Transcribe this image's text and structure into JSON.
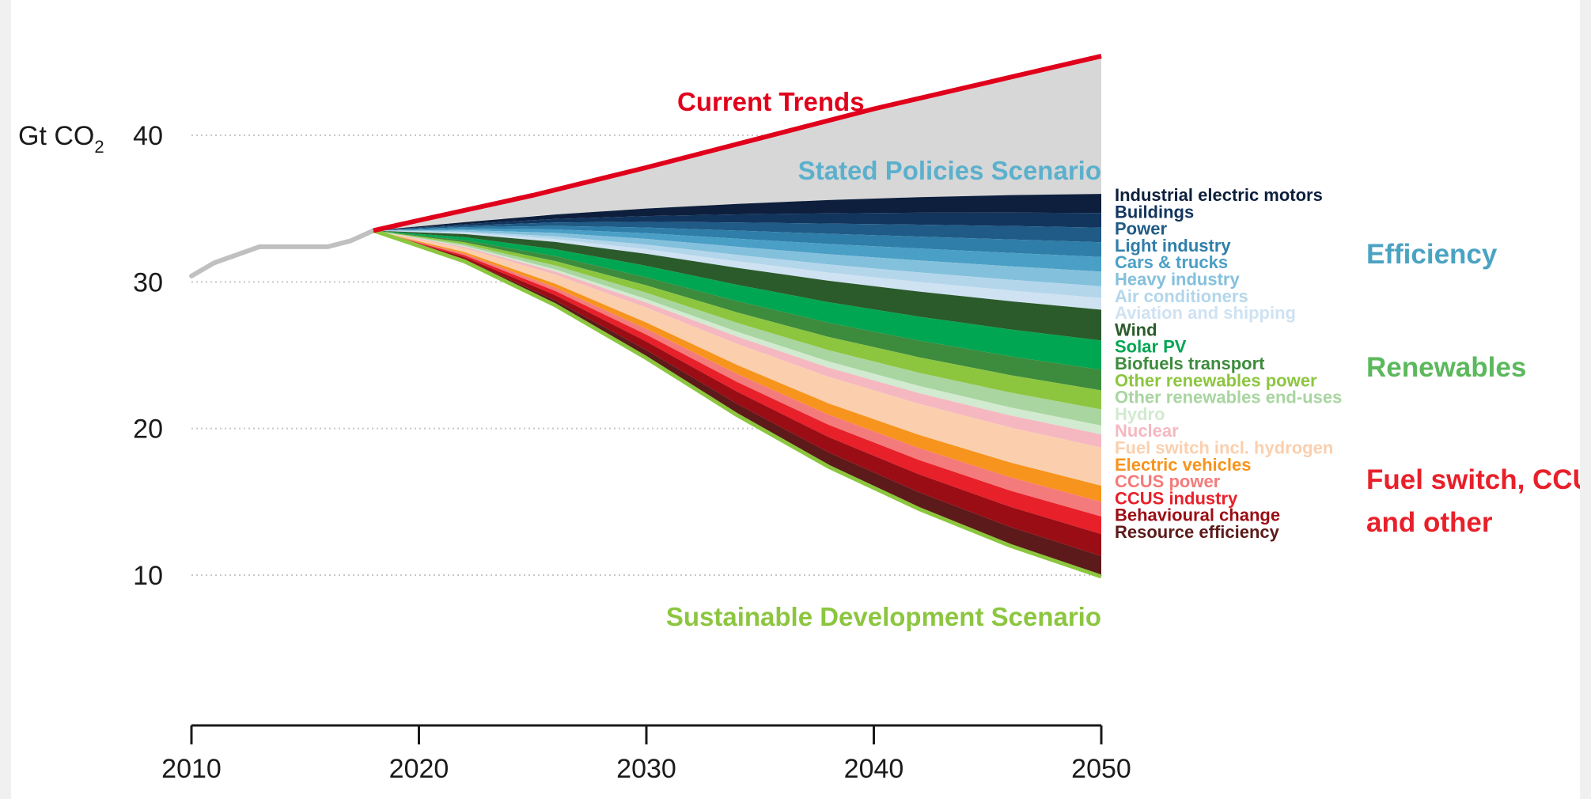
{
  "chart_data": {
    "type": "area",
    "y_unit": "Gt CO",
    "y_unit_sub": "2",
    "x_ticks": [
      2010,
      2020,
      2030,
      2040,
      2050
    ],
    "y_ticks": [
      10,
      20,
      30,
      40
    ],
    "xlim": [
      2010,
      2050
    ],
    "ylim": [
      0,
      45
    ],
    "grid": "horizontal-dotted",
    "history": {
      "x": [
        2010,
        2011,
        2013,
        2014,
        2016,
        2017,
        2018
      ],
      "y": [
        30.4,
        31.3,
        32.4,
        32.4,
        32.4,
        32.8,
        33.5
      ]
    },
    "current_trends": {
      "label": "Current Trends",
      "x": [
        2018,
        2020,
        2025,
        2030,
        2035,
        2040,
        2045,
        2050
      ],
      "y": [
        33.5,
        34.2,
        35.9,
        37.8,
        39.8,
        41.8,
        43.6,
        45.4
      ],
      "color": "#e0001b"
    },
    "stated_policies": {
      "label": "Stated Policies Scenario",
      "x": [
        2018,
        2025,
        2030,
        2035,
        2040,
        2045,
        2050
      ],
      "y": [
        33.5,
        34.5,
        35.0,
        35.4,
        35.7,
        35.9,
        36.0
      ],
      "color": "#5bb0cc"
    },
    "sustainable_development": {
      "label": "Sustainable Development Scenario",
      "x": [
        2018,
        2022,
        2026,
        2030,
        2034,
        2038,
        2042,
        2046,
        2050
      ],
      "y": [
        33.5,
        31.4,
        28.4,
        24.8,
        20.9,
        17.4,
        14.5,
        12.0,
        9.9
      ],
      "color": "#8cc63f"
    },
    "wedge_x": [
      2018,
      2022,
      2026,
      2030,
      2034,
      2038,
      2042,
      2046,
      2050
    ],
    "wedges": [
      {
        "label": "Industrial electric motors",
        "end": 36.0,
        "color": "#0d1f3c"
      },
      {
        "label": "Buildings",
        "end": 34.7,
        "color": "#12355e"
      },
      {
        "label": "Power",
        "end": 33.7,
        "color": "#1f5b86"
      },
      {
        "label": "Light industry",
        "end": 32.7,
        "color": "#2f7ea9"
      },
      {
        "label": "Cars & trucks",
        "end": 31.7,
        "color": "#4a9fc6"
      },
      {
        "label": "Heavy industry",
        "end": 30.7,
        "color": "#83c0dc"
      },
      {
        "label": "Air conditioners",
        "end": 29.7,
        "color": "#b3d6eb"
      },
      {
        "label": "Aviation and shipping",
        "end": 28.9,
        "color": "#cfe2f2"
      },
      {
        "label": "Wind",
        "end": 28.1,
        "color": "#2b5b2b"
      },
      {
        "label": "Solar PV",
        "end": 26.0,
        "color": "#00a651"
      },
      {
        "label": "Biofuels transport",
        "end": 24.0,
        "color": "#3d8b3d"
      },
      {
        "label": "Other renewables power",
        "end": 22.6,
        "color": "#8cc63f"
      },
      {
        "label": "Other renewables end-uses",
        "end": 21.3,
        "color": "#a8d5a0"
      },
      {
        "label": "Hydro",
        "end": 20.2,
        "color": "#d2ead0"
      },
      {
        "label": "Nuclear",
        "end": 19.6,
        "color": "#f5b8c0"
      },
      {
        "label": "Fuel switch incl. hydrogen",
        "end": 18.7,
        "color": "#fbcfad"
      },
      {
        "label": "Electric vehicles",
        "end": 16.1,
        "color": "#f7941d"
      },
      {
        "label": "CCUS power",
        "end": 15.0,
        "color": "#f47b7b"
      },
      {
        "label": "CCUS industry",
        "end": 14.0,
        "color": "#e8202a"
      },
      {
        "label": "Behavioural change",
        "end": 12.8,
        "color": "#9b0d14"
      },
      {
        "label": "Resource efficiency",
        "end": 11.3,
        "color": "#5c1a1a"
      }
    ],
    "groups": [
      {
        "lines": [
          "Efficiency"
        ],
        "color": "#4aa3c2"
      },
      {
        "lines": [
          "Renewables"
        ],
        "color": "#5cb85c"
      },
      {
        "lines": [
          "Fuel switch, CCUS",
          "and other"
        ],
        "color": "#e8202a"
      }
    ]
  }
}
